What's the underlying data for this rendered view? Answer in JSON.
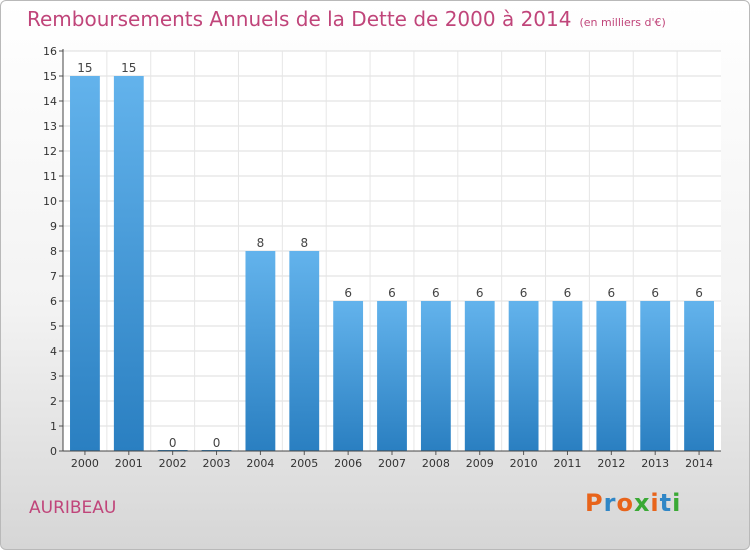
{
  "header": {
    "title": "Remboursements Annuels de la Dette de 2000 à 2014",
    "subtitle": "(en milliers d'€)"
  },
  "footer": {
    "place": "AURIBEAU",
    "logo": "Proxiti",
    "logo_colors": [
      "#e8641b",
      "#2f86c6",
      "#e8641b",
      "#3aa935",
      "#e8641b",
      "#2f86c6",
      "#3aa935"
    ]
  },
  "chart_data": {
    "type": "bar",
    "categories": [
      "2000",
      "2001",
      "2002",
      "2003",
      "2004",
      "2005",
      "2006",
      "2007",
      "2008",
      "2009",
      "2010",
      "2011",
      "2012",
      "2013",
      "2014"
    ],
    "values": [
      15,
      15,
      0,
      0,
      8,
      8,
      6,
      6,
      6,
      6,
      6,
      6,
      6,
      6,
      6
    ],
    "data_labels": [
      "15",
      "15",
      "0",
      "0",
      "8",
      "8",
      "6",
      "6",
      "6",
      "6",
      "6",
      "6",
      "6",
      "6",
      "6"
    ],
    "y_ticks": [
      "0",
      "1",
      "2",
      "3",
      "4",
      "5",
      "6",
      "7",
      "8",
      "9",
      "10",
      "11",
      "12",
      "13",
      "14",
      "15",
      "16"
    ],
    "ylim": [
      0,
      16
    ],
    "grid": true,
    "bar_color_top": "#63b3ec",
    "bar_color_bottom": "#2a7fc1",
    "xlabel": "",
    "ylabel": ""
  }
}
